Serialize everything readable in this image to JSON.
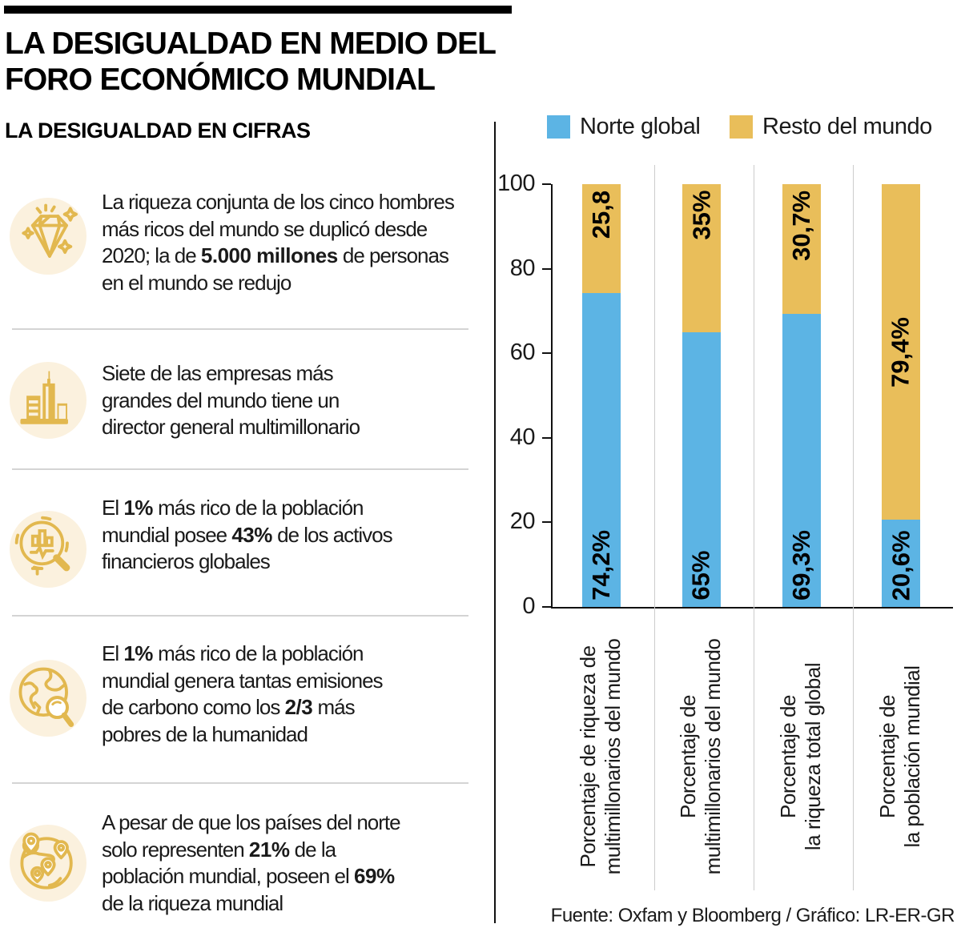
{
  "header": {
    "title_line1": "LA DESIGUALDAD EN MEDIO DEL",
    "title_line2": "FORO ECONÓMICO MUNDIAL",
    "section_title": "LA DESIGUALDAD EN CIFRAS"
  },
  "facts": [
    {
      "icon": "diamond-icon",
      "lines": [
        [
          {
            "t": "La riqueza conjunta de los cinco hombres",
            "b": false
          }
        ],
        [
          {
            "t": "más ricos del mundo se duplicó desde",
            "b": false
          }
        ],
        [
          {
            "t": "2020; la de ",
            "b": false
          },
          {
            "t": "5.000 millones",
            "b": true
          },
          {
            "t": " de personas",
            "b": false
          }
        ],
        [
          {
            "t": "en el mundo se redujo",
            "b": false
          }
        ]
      ]
    },
    {
      "icon": "buildings-icon",
      "lines": [
        [
          {
            "t": "Siete de las empresas más",
            "b": false
          }
        ],
        [
          {
            "t": "grandes del mundo tiene un",
            "b": false
          }
        ],
        [
          {
            "t": "director general multimillonario",
            "b": false
          }
        ]
      ]
    },
    {
      "icon": "chart-magnifier-icon",
      "lines": [
        [
          {
            "t": "El ",
            "b": false
          },
          {
            "t": "1%",
            "b": true
          },
          {
            "t": " más rico de la población",
            "b": false
          }
        ],
        [
          {
            "t": "mundial posee ",
            "b": false
          },
          {
            "t": "43%",
            "b": true
          },
          {
            "t": " de los activos",
            "b": false
          }
        ],
        [
          {
            "t": "financieros globales",
            "b": false
          }
        ]
      ]
    },
    {
      "icon": "globe-magnifier-icon",
      "lines": [
        [
          {
            "t": "El ",
            "b": false
          },
          {
            "t": "1%",
            "b": true
          },
          {
            "t": " más rico de la población",
            "b": false
          }
        ],
        [
          {
            "t": "mundial genera tantas emisiones",
            "b": false
          }
        ],
        [
          {
            "t": "de carbono como los ",
            "b": false
          },
          {
            "t": "2/3",
            "b": true
          },
          {
            "t": " más",
            "b": false
          }
        ],
        [
          {
            "t": "pobres de la humanidad",
            "b": false
          }
        ]
      ]
    },
    {
      "icon": "globe-pins-icon",
      "lines": [
        [
          {
            "t": "A pesar de que los países del norte",
            "b": false
          }
        ],
        [
          {
            "t": "solo representen ",
            "b": false
          },
          {
            "t": "21%",
            "b": true
          },
          {
            "t": " de la",
            "b": false
          }
        ],
        [
          {
            "t": "población mundial, poseen el ",
            "b": false
          },
          {
            "t": "69%",
            "b": true
          }
        ],
        [
          {
            "t": "de la riqueza mundial",
            "b": false
          }
        ]
      ]
    }
  ],
  "chart_data": {
    "type": "bar",
    "stacked": true,
    "categories": [
      [
        "Porcentaje de riqueza de",
        "multimillonarios del mundo"
      ],
      [
        "Porcentaje de",
        "multimillonarios del mundo"
      ],
      [
        "Porcentaje de",
        "la riqueza total global"
      ],
      [
        "Porcentaje de",
        "la población mundial"
      ]
    ],
    "series": [
      {
        "name": "Norte global",
        "color": "#5CB4E4",
        "values": [
          74.2,
          65,
          69.3,
          20.6
        ],
        "labels": [
          "74,2%",
          "65%",
          "69,3%",
          "20,6%"
        ]
      },
      {
        "name": "Resto del mundo",
        "color": "#E9BE5A",
        "values": [
          25.8,
          35,
          30.7,
          79.4
        ],
        "labels": [
          "25,8",
          "35%",
          "30,7%",
          "79,4%"
        ]
      }
    ],
    "ylim": [
      0,
      100
    ],
    "yticks": [
      0,
      20,
      40,
      60,
      80,
      100
    ],
    "grid": "vertical-category-separators",
    "legend_position": "top"
  },
  "footer": {
    "source": "Fuente: Oxfam y Bloomberg / Gráfico: LR-ER-GR"
  },
  "colors": {
    "north_blue": "#5CB4E4",
    "rest_gold": "#E9BE5A",
    "icon_gold": "#E2B84F",
    "icon_bg": "#FBF1DE",
    "divider_gray": "#d4d4d4",
    "text_black": "#111111"
  }
}
